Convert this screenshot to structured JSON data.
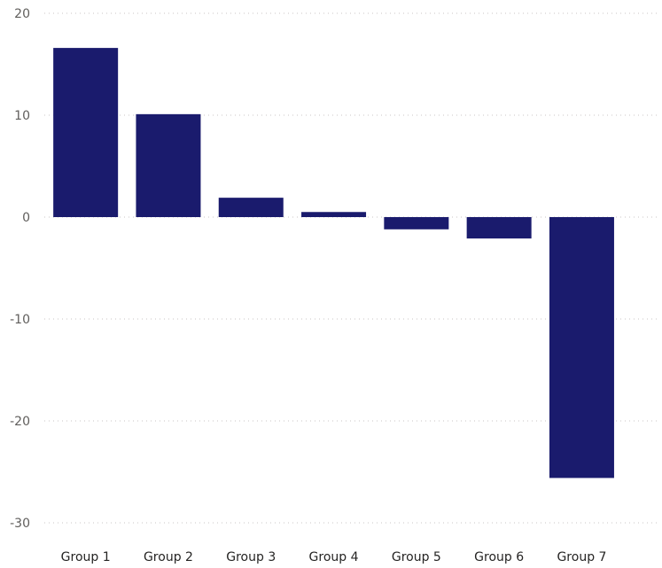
{
  "chart_data": {
    "type": "bar",
    "title": "",
    "xlabel": "",
    "ylabel": "",
    "categories": [
      "Group 1",
      "Group 2",
      "Group 3",
      "Group 4",
      "Group 5",
      "Group 6",
      "Group 7"
    ],
    "values": [
      16.6,
      10.1,
      1.9,
      0.5,
      -1.2,
      -2.1,
      -25.6
    ],
    "ylim": [
      -30,
      20
    ],
    "yticks": [
      20,
      10,
      0,
      -10,
      -20,
      -30
    ],
    "grid": true,
    "legend": "none",
    "bar_color": "#1a1b6d"
  }
}
